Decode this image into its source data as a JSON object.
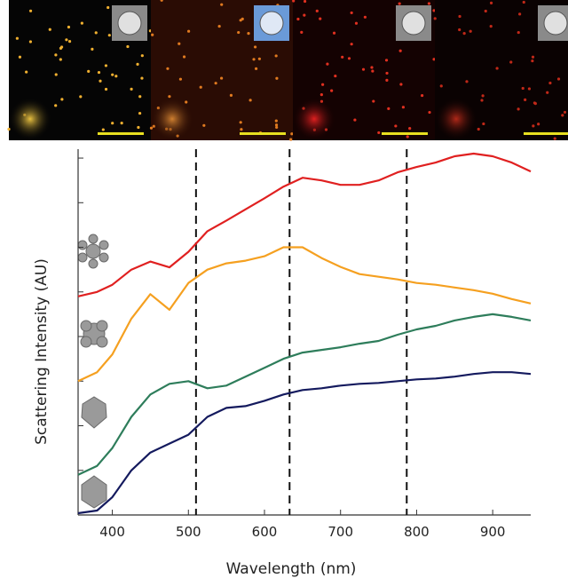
{
  "chart_data": {
    "type": "line",
    "x_label": "Wavelength (nm)",
    "y_label": "Scattering Intensity (AU)",
    "x": [
      355,
      380,
      400,
      425,
      450,
      475,
      500,
      525,
      550,
      575,
      600,
      625,
      650,
      675,
      700,
      725,
      750,
      775,
      800,
      825,
      850,
      875,
      900,
      925,
      950
    ],
    "series": [
      {
        "color": "#e02020",
        "values": [
          4.9,
          5.0,
          5.16,
          5.5,
          5.68,
          5.55,
          5.9,
          6.36,
          6.6,
          6.85,
          7.1,
          7.36,
          7.56,
          7.5,
          7.4,
          7.4,
          7.5,
          7.68,
          7.8,
          7.9,
          8.04,
          8.1,
          8.04,
          7.9,
          7.7
        ]
      },
      {
        "color": "#f5a020",
        "values": [
          3.0,
          3.2,
          3.6,
          4.4,
          4.95,
          4.6,
          5.2,
          5.5,
          5.64,
          5.7,
          5.8,
          6.0,
          6.0,
          5.76,
          5.56,
          5.4,
          5.34,
          5.28,
          5.2,
          5.16,
          5.1,
          5.04,
          4.96,
          4.84,
          4.74
        ]
      },
      {
        "color": "#2e7d5b",
        "values": [
          0.9,
          1.1,
          1.5,
          2.2,
          2.7,
          2.94,
          3.0,
          2.84,
          2.9,
          3.1,
          3.3,
          3.5,
          3.64,
          3.7,
          3.76,
          3.84,
          3.9,
          4.04,
          4.16,
          4.24,
          4.36,
          4.44,
          4.5,
          4.44,
          4.36
        ]
      },
      {
        "color": "#141a5e",
        "values": [
          0.04,
          0.1,
          0.4,
          1.0,
          1.4,
          1.6,
          1.8,
          2.2,
          2.4,
          2.44,
          2.56,
          2.7,
          2.8,
          2.84,
          2.9,
          2.94,
          2.96,
          3.0,
          3.04,
          3.06,
          3.1,
          3.16,
          3.2,
          3.2,
          3.16
        ]
      }
    ],
    "xlim": [
      355,
      950
    ],
    "xticks": [
      400,
      500,
      600,
      700,
      800,
      900
    ],
    "ylim": [
      0,
      8.2
    ],
    "yticks": [
      0,
      1,
      2,
      3,
      4,
      5,
      6,
      7,
      8
    ],
    "vlines": [
      510,
      633,
      787
    ]
  }
}
